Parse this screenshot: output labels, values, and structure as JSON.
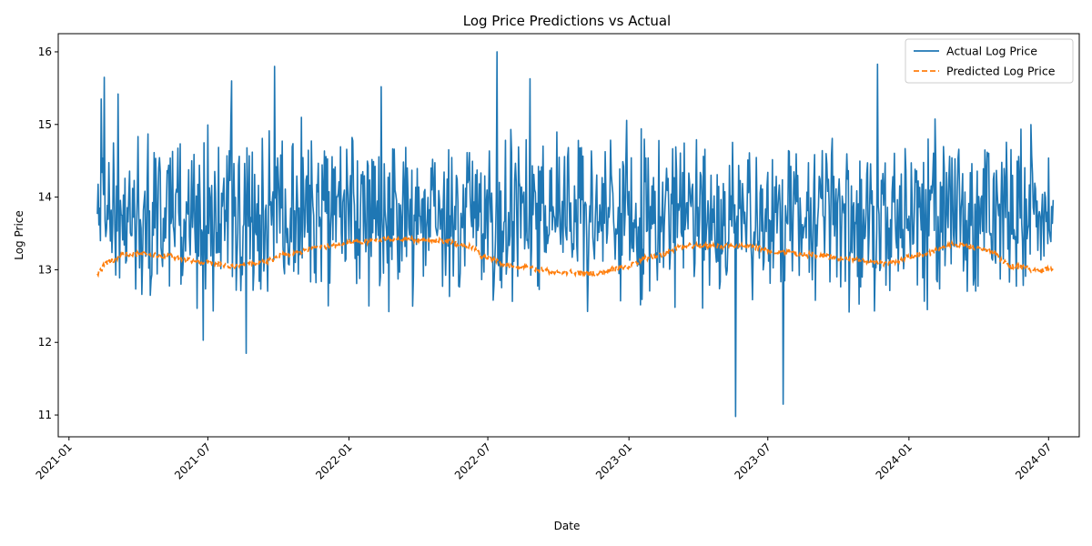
{
  "chart_data": {
    "type": "line",
    "title": "Log Price Predictions vs Actual",
    "xlabel": "Date",
    "ylabel": "Log Price",
    "x_range": [
      "2020-12-18",
      "2024-08-10"
    ],
    "x_ticks": [
      "2021-01",
      "2021-07",
      "2022-01",
      "2022-07",
      "2023-01",
      "2023-07",
      "2024-01",
      "2024-07"
    ],
    "x_tick_dates": [
      "2021-01-01",
      "2021-07-01",
      "2022-01-01",
      "2022-07-01",
      "2023-01-01",
      "2023-07-01",
      "2024-01-01",
      "2024-07-01"
    ],
    "ylim": [
      10.7,
      16.25
    ],
    "y_ticks": [
      11,
      12,
      13,
      14,
      15,
      16
    ],
    "grid": false,
    "legend_position": "top-right",
    "data_start": "2021-02-07",
    "data_end": "2024-07-07",
    "series": [
      {
        "name": "Actual Log Price",
        "color": "#1f77b4",
        "style": "solid",
        "summary": {
          "typical_low": 12.7,
          "typical_high": 14.8,
          "center": 13.75
        },
        "notable_points": [
          {
            "x": "2021-02-12",
            "y": 15.35
          },
          {
            "x": "2021-02-16",
            "y": 15.65
          },
          {
            "x": "2021-03-06",
            "y": 15.42
          },
          {
            "x": "2021-06-25",
            "y": 12.03
          },
          {
            "x": "2021-08-01",
            "y": 15.6
          },
          {
            "x": "2021-08-20",
            "y": 11.85
          },
          {
            "x": "2021-09-26",
            "y": 15.8
          },
          {
            "x": "2022-02-12",
            "y": 15.52
          },
          {
            "x": "2022-07-13",
            "y": 16.0
          },
          {
            "x": "2022-08-25",
            "y": 15.63
          },
          {
            "x": "2023-05-20",
            "y": 10.98
          },
          {
            "x": "2023-07-21",
            "y": 11.15
          },
          {
            "x": "2023-11-21",
            "y": 15.83
          }
        ]
      },
      {
        "name": "Predicted Log Price",
        "color": "#ff7f0e",
        "style": "dashed",
        "points": [
          {
            "x": "2021-02-07",
            "y": 12.95
          },
          {
            "x": "2021-02-20",
            "y": 13.1
          },
          {
            "x": "2021-03-15",
            "y": 13.22
          },
          {
            "x": "2021-05-01",
            "y": 13.2
          },
          {
            "x": "2021-06-15",
            "y": 13.12
          },
          {
            "x": "2021-08-01",
            "y": 13.05
          },
          {
            "x": "2021-09-10",
            "y": 13.1
          },
          {
            "x": "2021-10-15",
            "y": 13.22
          },
          {
            "x": "2021-12-01",
            "y": 13.32
          },
          {
            "x": "2022-01-15",
            "y": 13.38
          },
          {
            "x": "2022-03-01",
            "y": 13.42
          },
          {
            "x": "2022-05-01",
            "y": 13.4
          },
          {
            "x": "2022-06-10",
            "y": 13.32
          },
          {
            "x": "2022-06-25",
            "y": 13.18
          },
          {
            "x": "2022-08-01",
            "y": 13.05
          },
          {
            "x": "2022-10-01",
            "y": 12.97
          },
          {
            "x": "2022-11-20",
            "y": 12.95
          },
          {
            "x": "2022-12-20",
            "y": 13.02
          },
          {
            "x": "2023-02-01",
            "y": 13.18
          },
          {
            "x": "2023-03-20",
            "y": 13.33
          },
          {
            "x": "2023-06-01",
            "y": 13.32
          },
          {
            "x": "2023-07-15",
            "y": 13.25
          },
          {
            "x": "2023-09-01",
            "y": 13.2
          },
          {
            "x": "2023-10-15",
            "y": 13.15
          },
          {
            "x": "2023-12-01",
            "y": 13.08
          },
          {
            "x": "2024-01-15",
            "y": 13.2
          },
          {
            "x": "2024-03-01",
            "y": 13.35
          },
          {
            "x": "2024-04-10",
            "y": 13.28
          },
          {
            "x": "2024-05-15",
            "y": 13.05
          },
          {
            "x": "2024-06-20",
            "y": 12.98
          },
          {
            "x": "2024-07-07",
            "y": 13.02
          }
        ]
      }
    ]
  }
}
